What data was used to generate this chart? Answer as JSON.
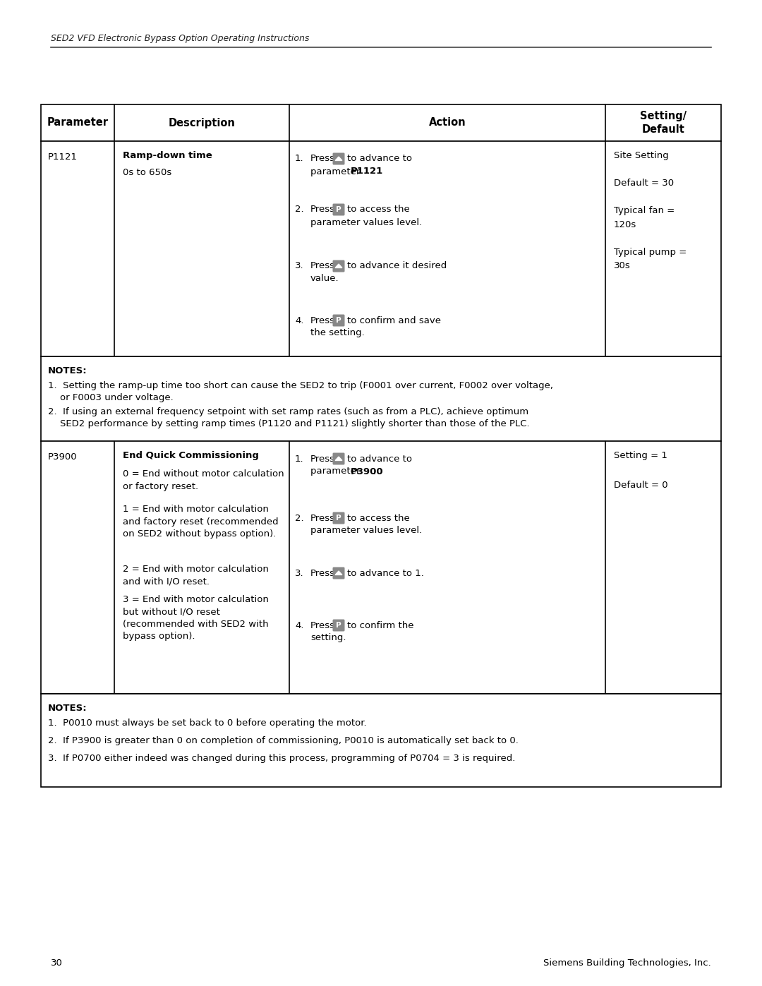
{
  "page_title": "SED2 VFD Electronic Bypass Option Operating Instructions",
  "page_number": "30",
  "footer_right": "Siemens Building Technologies, Inc.",
  "bg_color": "#ffffff",
  "row1_param": "P1121",
  "row1_desc_bold": "Ramp-down time",
  "row1_desc_sub": "0s to 650s",
  "row1_setting": "Site Setting\n\nDefault = 30\n\nTypical fan =\n120s\n\nTypical pump =\n30s",
  "notes1_title": "NOTES:",
  "notes1_line1": "1.  Setting the ramp-up time too short can cause the SED2 to trip (F0001 over current, F0002 over voltage,",
  "notes1_line2": "    or F0003 under voltage.",
  "notes1_line3": "2.  If using an external frequency setpoint with set ramp rates (such as from a PLC), achieve optimum",
  "notes1_line4": "    SED2 performance by setting ramp times (P1120 and P1121) slightly shorter than those of the PLC.",
  "row2_param": "P3900",
  "row2_desc_bold": "End Quick Commissioning",
  "row2_desc_line0": "0 = End without motor calculation\nor factory reset.",
  "row2_desc_line1": "1 = End with motor calculation\nand factory reset (recommended\non SED2 without bypass option).",
  "row2_desc_line2": "2 = End with motor calculation\nand with I/O reset.",
  "row2_desc_line3": "3 = End with motor calculation\nbut without I/O reset\n(recommended with SED2 with\nbypass option).",
  "row2_setting": "Setting = 1\n\nDefault = 0",
  "notes2_title": "NOTES:",
  "notes2_line1": "1.  P0010 must always be set back to 0 before operating the motor.",
  "notes2_line2": "2.  If P3900 is greater than 0 on completion of commissioning, P0010 is automatically set back to 0.",
  "notes2_line3": "3.  If P0700 either indeed was changed during this process, programming of P0704 = 3 is required.",
  "btn_color": "#888888",
  "font_size": 9.5,
  "header_font_size": 10.5,
  "title_font_size": 9.0
}
